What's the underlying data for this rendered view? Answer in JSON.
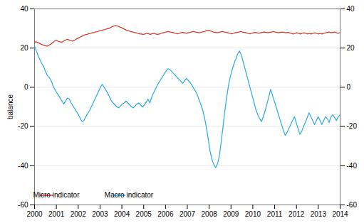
{
  "chart_data": {
    "type": "line",
    "title": "",
    "ylabel": "balance",
    "xlim": [
      2000,
      2014
    ],
    "xticks": [
      2000,
      2001,
      2002,
      2003,
      2004,
      2005,
      2006,
      2007,
      2008,
      2009,
      2010,
      2011,
      2012,
      2013,
      2014
    ],
    "ylim": [
      -60,
      40
    ],
    "yticks": [
      -60,
      -40,
      -20,
      0,
      20,
      40
    ],
    "y2lim": [
      -60,
      40
    ],
    "y2ticks": [
      -60,
      -40,
      -20,
      0,
      20,
      40
    ],
    "grid": true,
    "legend": "lower left",
    "series": [
      {
        "name": "Micro indicator",
        "color": "#d93020",
        "x": [
          2000,
          2000.083,
          2000.166,
          2000.249,
          2000.331,
          2000.414,
          2000.497,
          2000.58,
          2000.663,
          2000.746,
          2000.828,
          2000.911,
          2000.994,
          2001.077,
          2001.16,
          2001.243,
          2001.325,
          2001.408,
          2001.491,
          2001.574,
          2001.657,
          2001.74,
          2001.822,
          2001.905,
          2001.988,
          2002.071,
          2002.154,
          2002.237,
          2002.32,
          2002.402,
          2002.485,
          2002.568,
          2002.651,
          2002.734,
          2002.817,
          2002.899,
          2002.982,
          2003.065,
          2003.148,
          2003.231,
          2003.314,
          2003.396,
          2003.479,
          2003.562,
          2003.645,
          2003.728,
          2003.811,
          2003.893,
          2003.976,
          2004.059,
          2004.142,
          2004.225,
          2004.308,
          2004.391,
          2004.473,
          2004.556,
          2004.639,
          2004.722,
          2004.805,
          2004.888,
          2004.97,
          2005.053,
          2005.136,
          2005.219,
          2005.302,
          2005.385,
          2005.467,
          2005.55,
          2005.633,
          2005.716,
          2005.799,
          2005.882,
          2005.964,
          2006.047,
          2006.13,
          2006.213,
          2006.296,
          2006.379,
          2006.462,
          2006.544,
          2006.627,
          2006.71,
          2006.793,
          2006.876,
          2006.959,
          2007.041,
          2007.124,
          2007.207,
          2007.29,
          2007.373,
          2007.456,
          2007.538,
          2007.621,
          2007.704,
          2007.787,
          2007.87,
          2007.953,
          2008.036,
          2008.118,
          2008.201,
          2008.284,
          2008.367,
          2008.45,
          2008.533,
          2008.615,
          2008.698,
          2008.781,
          2008.864,
          2008.947,
          2009.03,
          2009.112,
          2009.195,
          2009.278,
          2009.361,
          2009.444,
          2009.527,
          2009.609,
          2009.692,
          2009.775,
          2009.858,
          2009.941,
          2010.024,
          2010.107,
          2010.189,
          2010.272,
          2010.355,
          2010.438,
          2010.521,
          2010.604,
          2010.686,
          2010.769,
          2010.852,
          2010.935,
          2011.018,
          2011.101,
          2011.183,
          2011.266,
          2011.349,
          2011.432,
          2011.515,
          2011.598,
          2011.68,
          2011.763,
          2011.846,
          2011.929,
          2012.012,
          2012.095,
          2012.178,
          2012.26,
          2012.343,
          2012.426,
          2012.509,
          2012.592,
          2012.675,
          2012.757,
          2012.84,
          2012.923,
          2013.006,
          2013.089,
          2013.172,
          2013.254,
          2013.337,
          2013.42,
          2013.503,
          2013.586,
          2013.669,
          2013.751,
          2013.834,
          2013.917,
          2014
        ],
        "values": [
          23.0,
          23.2,
          22.8,
          22.3,
          21.8,
          21.5,
          21.2,
          21.0,
          21.5,
          22.0,
          22.8,
          23.5,
          24.0,
          23.5,
          23.2,
          23.0,
          23.5,
          24.0,
          24.5,
          24.2,
          23.8,
          23.5,
          24.0,
          24.5,
          25.0,
          25.5,
          26.0,
          26.5,
          26.8,
          27.0,
          27.3,
          27.5,
          27.8,
          28.0,
          28.3,
          28.5,
          28.8,
          29.0,
          29.3,
          29.5,
          29.8,
          30.0,
          30.5,
          31.0,
          31.3,
          31.5,
          31.2,
          30.8,
          30.5,
          30.0,
          29.5,
          29.0,
          28.8,
          28.5,
          28.3,
          28.0,
          27.8,
          27.5,
          27.3,
          27.2,
          27.0,
          27.2,
          27.5,
          27.3,
          27.0,
          27.3,
          27.5,
          27.2,
          27.0,
          27.2,
          27.5,
          27.8,
          28.0,
          28.3,
          28.5,
          28.2,
          28.0,
          27.8,
          27.5,
          27.3,
          27.5,
          27.8,
          28.0,
          27.8,
          27.5,
          27.8,
          28.0,
          28.3,
          28.5,
          28.2,
          28.0,
          27.8,
          28.0,
          28.3,
          28.5,
          28.8,
          29.0,
          28.8,
          28.5,
          28.2,
          28.0,
          27.8,
          28.0,
          28.3,
          28.5,
          28.2,
          28.0,
          27.8,
          27.5,
          27.3,
          27.5,
          27.8,
          28.0,
          28.2,
          28.5,
          28.2,
          28.0,
          27.8,
          27.5,
          27.3,
          27.5,
          27.8,
          28.0,
          27.8,
          27.5,
          27.8,
          28.0,
          28.2,
          28.0,
          27.8,
          28.0,
          28.2,
          28.5,
          28.2,
          28.0,
          27.8,
          28.0,
          28.2,
          28.0,
          27.8,
          28.0,
          27.8,
          27.5,
          27.2,
          27.5,
          27.8,
          27.5,
          27.2,
          27.5,
          27.8,
          27.5,
          27.2,
          27.5,
          27.2,
          27.5,
          27.8,
          27.5,
          27.2,
          27.5,
          27.2,
          27.5,
          27.8,
          28.0,
          28.2,
          27.8,
          28.0,
          28.2,
          27.8,
          27.5,
          28.0
        ]
      },
      {
        "name": "Macro indicator",
        "color": "#29aae2",
        "x": [
          2000,
          2000.084,
          2000.168,
          2000.251,
          2000.335,
          2000.419,
          2000.503,
          2000.587,
          2000.671,
          2000.754,
          2000.838,
          2000.922,
          2001.006,
          2001.09,
          2001.174,
          2001.257,
          2001.341,
          2001.425,
          2001.509,
          2001.593,
          2001.677,
          2001.76,
          2001.844,
          2001.928,
          2002.012,
          2002.096,
          2002.18,
          2002.263,
          2002.347,
          2002.431,
          2002.515,
          2002.599,
          2002.683,
          2002.766,
          2002.85,
          2002.934,
          2003.018,
          2003.102,
          2003.186,
          2003.269,
          2003.353,
          2003.437,
          2003.521,
          2003.605,
          2003.689,
          2003.772,
          2003.856,
          2003.94,
          2004.024,
          2004.108,
          2004.192,
          2004.275,
          2004.359,
          2004.443,
          2004.527,
          2004.611,
          2004.695,
          2004.778,
          2004.862,
          2004.946,
          2005.03,
          2005.114,
          2005.198,
          2005.281,
          2005.365,
          2005.449,
          2005.533,
          2005.617,
          2005.701,
          2005.784,
          2005.868,
          2005.952,
          2006.036,
          2006.12,
          2006.204,
          2006.287,
          2006.371,
          2006.455,
          2006.539,
          2006.623,
          2006.707,
          2006.79,
          2006.874,
          2006.958,
          2007.042,
          2007.126,
          2007.21,
          2007.293,
          2007.377,
          2007.461,
          2007.545,
          2007.629,
          2007.713,
          2007.796,
          2007.88,
          2007.964,
          2008.048,
          2008.132,
          2008.216,
          2008.299,
          2008.383,
          2008.467,
          2008.551,
          2008.635,
          2008.719,
          2008.802,
          2008.886,
          2008.97,
          2009.054,
          2009.138,
          2009.222,
          2009.305,
          2009.389,
          2009.473,
          2009.557,
          2009.641,
          2009.725,
          2009.808,
          2009.892,
          2009.976,
          2010.06,
          2010.144,
          2010.228,
          2010.311,
          2010.395,
          2010.479,
          2010.563,
          2010.647,
          2010.731,
          2010.814,
          2010.898,
          2010.982,
          2011.066,
          2011.15,
          2011.234,
          2011.317,
          2011.401,
          2011.485,
          2011.569,
          2011.653,
          2011.737,
          2011.82,
          2011.904,
          2011.988,
          2012.072,
          2012.156,
          2012.24,
          2012.323,
          2012.407,
          2012.491,
          2012.575,
          2012.659,
          2012.743,
          2012.826,
          2012.91,
          2012.994,
          2013.078,
          2013.162,
          2013.246,
          2013.329,
          2013.413,
          2013.497,
          2013.581,
          2013.665,
          2013.749,
          2013.832,
          2013.916,
          2014
        ],
        "values": [
          21.0,
          18.5,
          16.0,
          14.0,
          12.0,
          10.5,
          8.0,
          6.0,
          5.0,
          3.5,
          1.0,
          -1.0,
          -2.5,
          -4.0,
          -5.5,
          -7.0,
          -8.5,
          -7.0,
          -5.5,
          -6.0,
          -8.0,
          -9.5,
          -11.0,
          -12.5,
          -14.0,
          -16.0,
          -17.5,
          -17.0,
          -15.0,
          -13.5,
          -12.0,
          -10.0,
          -8.0,
          -6.0,
          -4.0,
          -2.0,
          0.0,
          1.5,
          0.0,
          -1.5,
          -3.0,
          -5.0,
          -7.0,
          -8.0,
          -9.0,
          -10.0,
          -10.5,
          -9.5,
          -8.5,
          -8.0,
          -7.0,
          -8.0,
          -9.0,
          -10.0,
          -10.5,
          -9.5,
          -8.5,
          -8.0,
          -9.0,
          -10.0,
          -9.0,
          -7.5,
          -6.0,
          -8.0,
          -5.0,
          -3.0,
          -1.0,
          1.0,
          2.5,
          4.0,
          5.5,
          7.0,
          8.5,
          9.5,
          9.0,
          8.0,
          7.0,
          6.0,
          5.0,
          4.0,
          3.0,
          2.0,
          3.5,
          4.5,
          3.5,
          2.5,
          1.0,
          -0.5,
          -2.0,
          -4.0,
          -6.5,
          -9.0,
          -12.0,
          -16.0,
          -21.0,
          -27.0,
          -33.0,
          -37.0,
          -39.5,
          -41.0,
          -39.0,
          -35.0,
          -28.0,
          -20.0,
          -12.0,
          -5.0,
          1.0,
          5.5,
          9.0,
          12.0,
          14.5,
          17.0,
          18.5,
          16.5,
          13.0,
          9.5,
          6.0,
          2.5,
          -1.0,
          -4.5,
          -8.0,
          -11.5,
          -14.0,
          -16.0,
          -17.5,
          -15.0,
          -12.0,
          -8.5,
          -5.0,
          -1.0,
          -4.0,
          -7.0,
          -10.0,
          -13.0,
          -16.0,
          -19.0,
          -22.0,
          -24.5,
          -23.0,
          -21.0,
          -19.0,
          -17.0,
          -15.0,
          -18.0,
          -21.0,
          -24.0,
          -22.5,
          -20.0,
          -18.0,
          -15.5,
          -13.0,
          -15.0,
          -17.0,
          -19.0,
          -17.0,
          -15.0,
          -17.0,
          -19.0,
          -17.0,
          -15.0,
          -16.0,
          -18.0,
          -15.0,
          -14.0,
          -15.5,
          -17.0,
          -15.0,
          -14.0
        ]
      }
    ]
  }
}
